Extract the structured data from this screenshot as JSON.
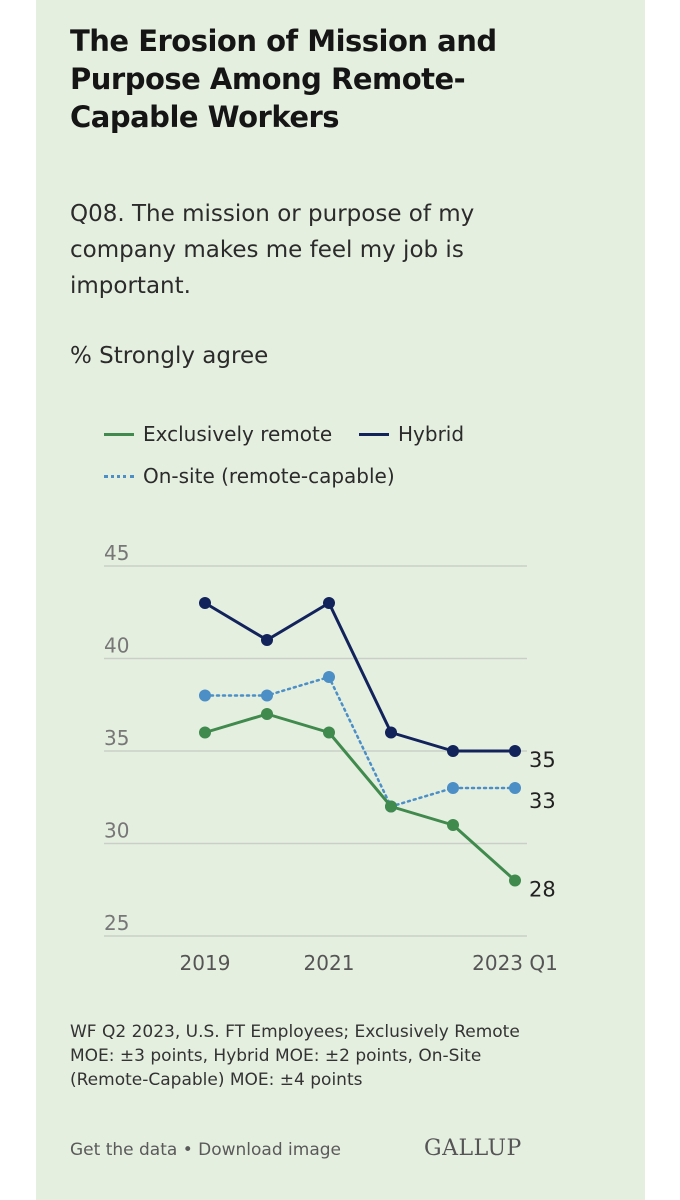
{
  "colors": {
    "background": "#e5efe0",
    "remote": "#3f8a4c",
    "hybrid": "#12235b",
    "onsite": "#4b8fc6",
    "grid": "#c9cfc6",
    "axis_text": "#777777"
  },
  "header": {
    "title": "The Erosion of Mission and Purpose Among Remote-Capable Workers",
    "question": "Q08. The mission or purpose of my company makes me feel my job is important.",
    "measure": "% Strongly agree"
  },
  "legend": {
    "remote": "Exclusively remote",
    "hybrid": "Hybrid",
    "onsite": "On-site (remote-capable)"
  },
  "chart_data": {
    "type": "line",
    "title": "The Erosion of Mission and Purpose Among Remote-Capable Workers",
    "ylabel": "% Strongly agree",
    "xlabel": "",
    "ylim": [
      25,
      45
    ],
    "y_ticks": [
      "45",
      "40",
      "35",
      "30",
      "25"
    ],
    "x_ticks": [
      "2019",
      "2021",
      "2023 Q1"
    ],
    "x_tick_index": [
      0,
      2,
      5
    ],
    "n_points": 6,
    "grid": true,
    "series": [
      {
        "name": "Hybrid",
        "key": "hybrid",
        "style": "solid",
        "values": [
          43,
          41,
          43,
          36,
          35,
          35
        ],
        "end_label": "35"
      },
      {
        "name": "On-site (remote-capable)",
        "key": "onsite",
        "style": "dotted",
        "values": [
          38,
          38,
          39,
          32,
          33,
          33
        ],
        "end_label": "33"
      },
      {
        "name": "Exclusively remote",
        "key": "remote",
        "style": "solid",
        "values": [
          36,
          37,
          36,
          32,
          31,
          28
        ],
        "end_label": "28"
      }
    ]
  },
  "footer": {
    "source": "WF Q2 2023, U.S. FT Employees; Exclusively Remote MOE: ±3 points, Hybrid MOE: ±2 points, On-Site (Remote-Capable) MOE: ±4 points",
    "link_data": "Get the data",
    "separator": "•",
    "link_download": "Download image",
    "brand": "GALLUP"
  }
}
